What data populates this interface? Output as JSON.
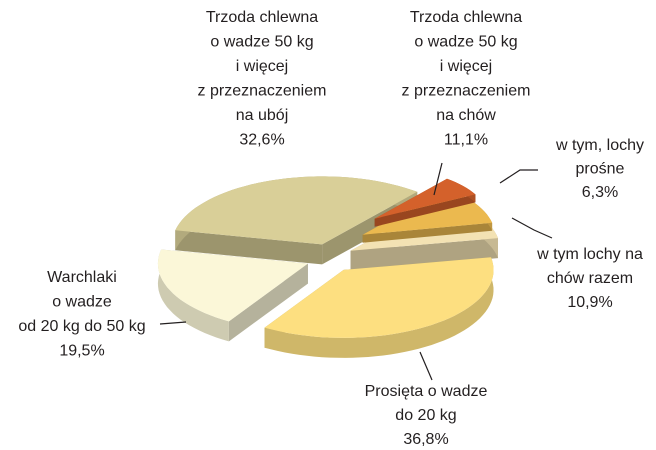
{
  "chart_data": {
    "type": "pie",
    "categories": [
      [
        "Trzoda chlewna",
        "o wadze 50 kg",
        "i więcej",
        "z przeznaczeniem",
        "na ubój"
      ],
      [
        "Trzoda chlewna",
        "o wadze 50 kg",
        "i więcej",
        "z przeznaczeniem",
        "na chów"
      ],
      [
        "Prosięta o wadze",
        "do 20 kg"
      ],
      [
        "Warchlaki",
        "o wadze",
        "od 20 kg do 50 kg"
      ]
    ],
    "values": [
      32.6,
      11.1,
      36.8,
      19.5
    ],
    "value_labels": [
      "32,6%",
      "11,1%",
      "36,8%",
      "19,5%"
    ],
    "colors": [
      "#d9cf98",
      "#f3e2b3",
      "#fddf80",
      "#fbf7d8"
    ],
    "breakdown": {
      "of": 1,
      "categories": [
        [
          "w tym lochy na",
          "chów razem"
        ],
        [
          "w tym, lochy",
          "prośne"
        ]
      ],
      "values": [
        10.9,
        6.3
      ],
      "value_labels": [
        "10,9%",
        "6,3%"
      ],
      "colors": [
        "#ebb94f",
        "#d4612b"
      ]
    }
  }
}
